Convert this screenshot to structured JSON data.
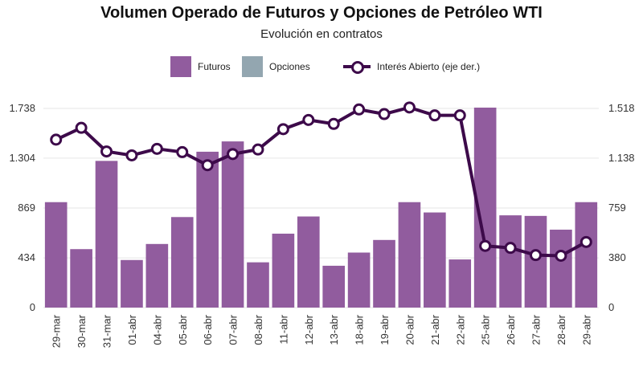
{
  "colors": {
    "futuros": "#915c9e",
    "opciones": "#93a6b0",
    "interes": "#3d0a4a",
    "grid": "#e6e6e6"
  },
  "chart_data": {
    "type": "bar",
    "title": "Volumen Operado de Futuros y Opciones de Petróleo WTI",
    "subtitle": "Evolución en contratos",
    "categories": [
      "29-mar",
      "30-mar",
      "31-mar",
      "01-abr",
      "04-abr",
      "05-abr",
      "06-abr",
      "07-abr",
      "08-abr",
      "11-abr",
      "12-abr",
      "13-abr",
      "18-abr",
      "19-abr",
      "20-abr",
      "21-abr",
      "22-abr",
      "25-abr",
      "26-abr",
      "27-abr",
      "28-abr",
      "29-abr"
    ],
    "legend_position": "top",
    "grid": true,
    "series": [
      {
        "name": "Futuros",
        "type": "bar",
        "axis": "left",
        "values": [
          920,
          510,
          1280,
          415,
          555,
          790,
          1360,
          1450,
          395,
          645,
          795,
          365,
          480,
          590,
          920,
          830,
          420,
          1745,
          805,
          800,
          680,
          920
        ]
      },
      {
        "name": "Opciones",
        "type": "bar",
        "axis": "left",
        "values": [
          0,
          0,
          0,
          0,
          0,
          0,
          0,
          0,
          0,
          0,
          0,
          0,
          0,
          0,
          0,
          0,
          0,
          0,
          0,
          0,
          0,
          0
        ]
      },
      {
        "name": "Interés Abierto (eje der.)",
        "type": "line",
        "axis": "right",
        "values": [
          1280,
          1370,
          1190,
          1160,
          1210,
          1185,
          1085,
          1170,
          1205,
          1360,
          1430,
          1400,
          1510,
          1475,
          1525,
          1465,
          1465,
          470,
          455,
          400,
          395,
          500
        ]
      }
    ],
    "y_left": {
      "ticks": [
        0,
        434,
        869,
        1304,
        1738
      ],
      "tick_labels": [
        "0",
        "434",
        "869",
        "1.304",
        "1.738"
      ],
      "lim": [
        0,
        1738
      ]
    },
    "y_right": {
      "ticks": [
        0,
        380,
        759,
        1138,
        1518
      ],
      "tick_labels": [
        "0",
        "380",
        "759",
        "1.138",
        "1.518"
      ],
      "lim": [
        0,
        1518
      ]
    }
  }
}
